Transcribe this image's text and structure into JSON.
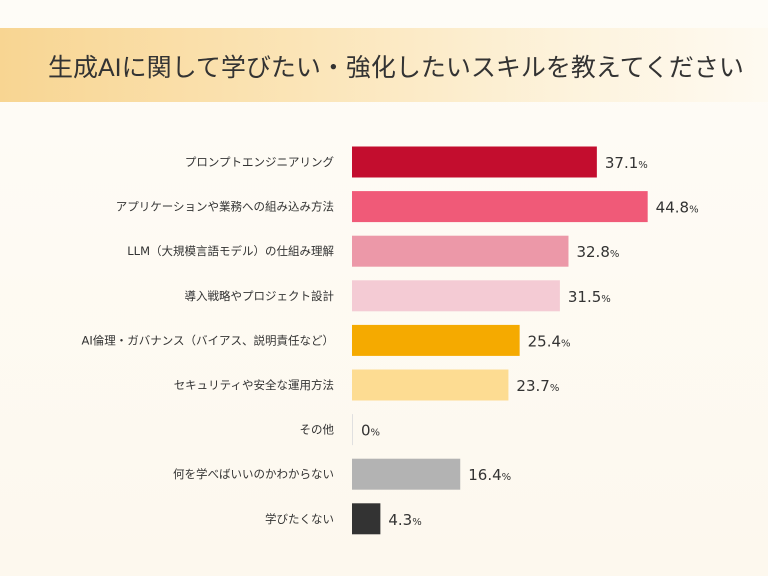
{
  "chart_data": {
    "type": "bar",
    "orientation": "horizontal",
    "title": "生成AIに関して学びたい・強化したいスキルを教えてください",
    "categories": [
      "プロンプトエンジニアリング",
      "アプリケーションや業務への組み込み方法",
      "LLM（大規模言語モデル）の仕組み理解",
      "導入戦略やプロジェクト設計",
      "AI倫理・ガバナンス（バイアス、説明責任など）",
      "セキュリティや安全な運用方法",
      "その他",
      "何を学べばいいのかわからない",
      "学びたくない"
    ],
    "values": [
      37.1,
      44.8,
      32.8,
      31.5,
      25.4,
      23.7,
      0,
      16.4,
      4.3
    ],
    "value_labels": [
      "37.1",
      "44.8",
      "32.8",
      "31.5",
      "25.4",
      "23.7",
      "0",
      "16.4",
      "4.3"
    ],
    "unit": "%",
    "colors": [
      "#c30d2e",
      "#f05a78",
      "#ec98a8",
      "#f4cbd4",
      "#f5aa00",
      "#fddc92",
      "#e0e0e0",
      "#b3b3b3",
      "#333333"
    ],
    "grid": false,
    "legend": "none"
  }
}
